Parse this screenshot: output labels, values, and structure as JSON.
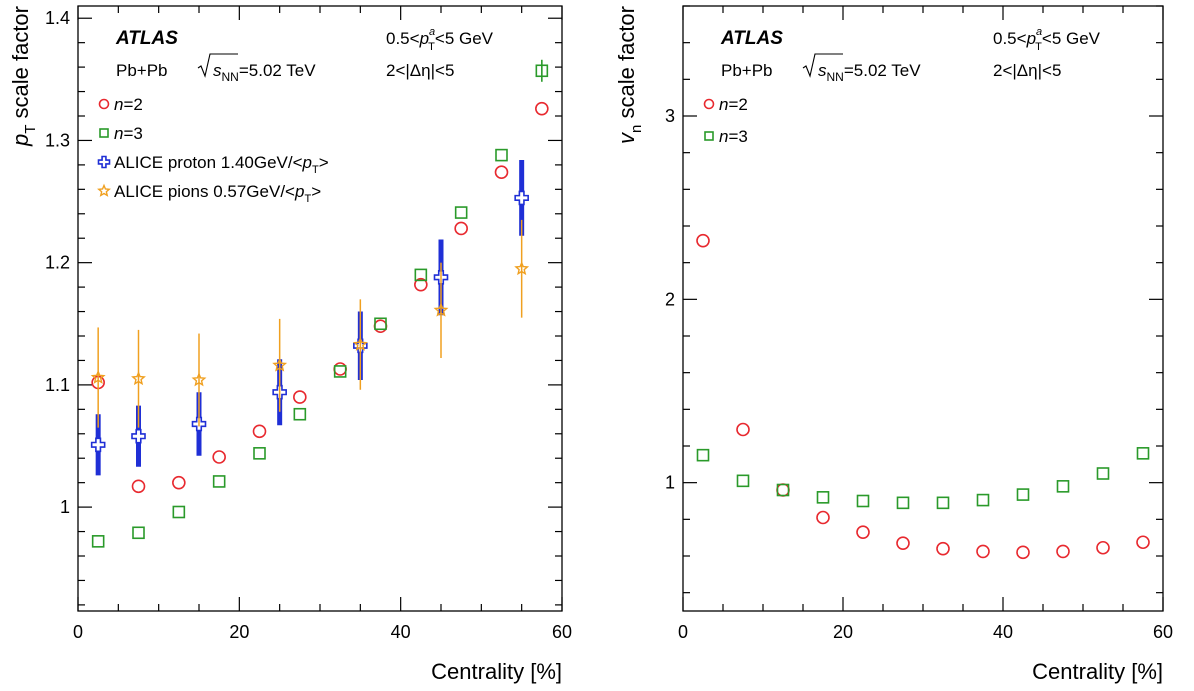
{
  "chart_data": [
    {
      "type": "scatter",
      "panel": "left",
      "xlabel": "Centrality [%]",
      "ylabel_main": "p",
      "ylabel_sub": "T",
      "ylabel_rest": " scale factor",
      "xlim": [
        0,
        60
      ],
      "ylim": [
        0.915,
        1.41
      ],
      "xticks": [
        "0",
        "20",
        "40",
        "60"
      ],
      "yticks": [
        "1",
        "1.1",
        "1.2",
        "1.3",
        "1.4"
      ],
      "atlas": "ATLAS",
      "system": "Pb+Pb",
      "energy_sym": "s",
      "energy_sub": "NN",
      "energy_val": "=5.02 TeV",
      "pt_lo": "0.5<",
      "pt_p": "p",
      "pt_sup": "a",
      "pt_sub": "T",
      "pt_hi": "<5 GeV",
      "deta": "2<|Δη|<5",
      "grid": false,
      "legend_position": "left",
      "series": [
        {
          "name": "n=2",
          "label_italic": "n",
          "label_rest": "=2",
          "marker": "circle",
          "color": "#e8292f",
          "x": [
            2.5,
            7.5,
            12.5,
            17.5,
            22.5,
            27.5,
            32.5,
            37.5,
            42.5,
            47.5,
            52.5,
            57.5
          ],
          "y": [
            1.102,
            1.017,
            1.02,
            1.041,
            1.062,
            1.09,
            1.113,
            1.148,
            1.182,
            1.228,
            1.274,
            1.326
          ]
        },
        {
          "name": "n=3",
          "label_italic": "n",
          "label_rest": "=3",
          "marker": "square",
          "color": "#2a9a2a",
          "x": [
            2.5,
            7.5,
            12.5,
            17.5,
            22.5,
            27.5,
            32.5,
            37.5,
            42.5,
            47.5,
            52.5,
            57.5
          ],
          "y": [
            0.972,
            0.979,
            0.996,
            1.021,
            1.044,
            1.076,
            1.111,
            1.15,
            1.19,
            1.241,
            1.288,
            1.357
          ]
        },
        {
          "name": "ALICE proton 1.40GeV/<pT>",
          "label_plain": "ALICE proton 1.40GeV/<",
          "label_p": "p",
          "label_sub": "T",
          "label_end": ">",
          "marker": "cross",
          "color": "#1f2fd6",
          "x": [
            2.5,
            7.5,
            15,
            25,
            35,
            45,
            55
          ],
          "y": [
            1.051,
            1.058,
            1.068,
            1.094,
            1.132,
            1.188,
            1.253
          ],
          "err": [
            0.025,
            0.025,
            0.026,
            0.027,
            0.028,
            0.031,
            0.031
          ]
        },
        {
          "name": "ALICE pions 0.57GeV/<pT>",
          "label_plain": "ALICE pions 0.57GeV/<",
          "label_p": "p",
          "label_sub": "T",
          "label_end": ">",
          "marker": "star",
          "color": "#f0a020",
          "x": [
            2.5,
            7.5,
            15,
            25,
            35,
            45,
            55
          ],
          "y": [
            1.106,
            1.105,
            1.104,
            1.116,
            1.133,
            1.161,
            1.195
          ],
          "err": [
            0.041,
            0.04,
            0.038,
            0.038,
            0.037,
            0.039,
            0.04
          ]
        }
      ]
    },
    {
      "type": "scatter",
      "panel": "right",
      "xlabel": "Centrality [%]",
      "ylabel_main": "v",
      "ylabel_sub": "n",
      "ylabel_rest": " scale factor",
      "xlim": [
        0,
        60
      ],
      "ylim": [
        0.3,
        3.6
      ],
      "xticks": [
        "0",
        "20",
        "40",
        "60"
      ],
      "yticks": [
        "1",
        "2",
        "3"
      ],
      "atlas": "ATLAS",
      "system": "Pb+Pb",
      "energy_sym": "s",
      "energy_sub": "NN",
      "energy_val": "=5.02 TeV",
      "pt_lo": "0.5<",
      "pt_p": "p",
      "pt_sup": "a",
      "pt_sub": "T",
      "pt_hi": "<5 GeV",
      "deta": "2<|Δη|<5",
      "grid": false,
      "legend_position": "top-left",
      "series": [
        {
          "name": "n=2",
          "label_italic": "n",
          "label_rest": "=2",
          "marker": "circle",
          "color": "#e8292f",
          "x": [
            2.5,
            7.5,
            12.5,
            17.5,
            22.5,
            27.5,
            32.5,
            37.5,
            42.5,
            47.5,
            52.5,
            57.5
          ],
          "y": [
            2.32,
            1.29,
            0.96,
            0.81,
            0.73,
            0.67,
            0.64,
            0.625,
            0.62,
            0.625,
            0.645,
            0.675
          ]
        },
        {
          "name": "n=3",
          "label_italic": "n",
          "label_rest": "=3",
          "marker": "square",
          "color": "#2a9a2a",
          "x": [
            2.5,
            7.5,
            12.5,
            17.5,
            22.5,
            27.5,
            32.5,
            37.5,
            42.5,
            47.5,
            52.5,
            57.5
          ],
          "y": [
            1.15,
            1.01,
            0.96,
            0.92,
            0.9,
            0.89,
            0.89,
            0.905,
            0.935,
            0.98,
            1.05,
            1.16
          ]
        }
      ]
    }
  ]
}
